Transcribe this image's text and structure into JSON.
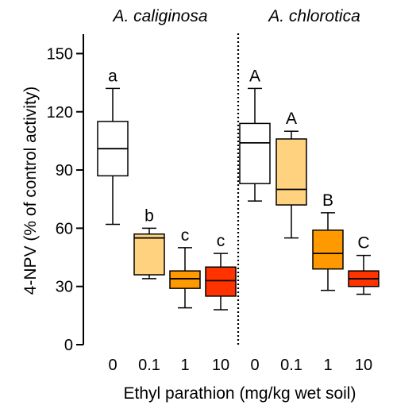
{
  "chart_data": {
    "type": "box",
    "ylabel": "4-NPV (% of control activity)",
    "xlabel": "Ethyl parathion (mg/kg wet soil)",
    "ylim": [
      0,
      160
    ],
    "yticks": [
      0,
      30,
      60,
      90,
      120,
      150
    ],
    "grid": false,
    "legend": "none",
    "categories": [
      "0",
      "0.1",
      "1",
      "10"
    ],
    "colors": [
      "#ffffff",
      "#ffd27f",
      "#ff9900",
      "#ff3300"
    ],
    "panels": [
      {
        "title": "A. caliginosa",
        "boxes": [
          {
            "category": "0",
            "min": 62,
            "q1": 87,
            "median": 101,
            "q3": 115,
            "max": 132,
            "letter": "a"
          },
          {
            "category": "0.1",
            "min": 34,
            "q1": 36,
            "median": 55,
            "q3": 57,
            "max": 60,
            "letter": "b"
          },
          {
            "category": "1",
            "min": 19,
            "q1": 29,
            "median": 34,
            "q3": 38,
            "max": 50,
            "letter": "c"
          },
          {
            "category": "10",
            "min": 18,
            "q1": 25,
            "median": 33,
            "q3": 40,
            "max": 47,
            "letter": "c"
          }
        ]
      },
      {
        "title": "A. chlorotica",
        "boxes": [
          {
            "category": "0",
            "min": 74,
            "q1": 83,
            "median": 104,
            "q3": 114,
            "max": 132,
            "letter": "A"
          },
          {
            "category": "0.1",
            "min": 55,
            "q1": 72,
            "median": 80,
            "q3": 106,
            "max": 110,
            "letter": "A"
          },
          {
            "category": "1",
            "min": 28,
            "q1": 39,
            "median": 47,
            "q3": 59,
            "max": 68,
            "letter": "B"
          },
          {
            "category": "10",
            "min": 26,
            "q1": 30,
            "median": 34,
            "q3": 38,
            "max": 46,
            "letter": "C"
          }
        ]
      }
    ]
  }
}
